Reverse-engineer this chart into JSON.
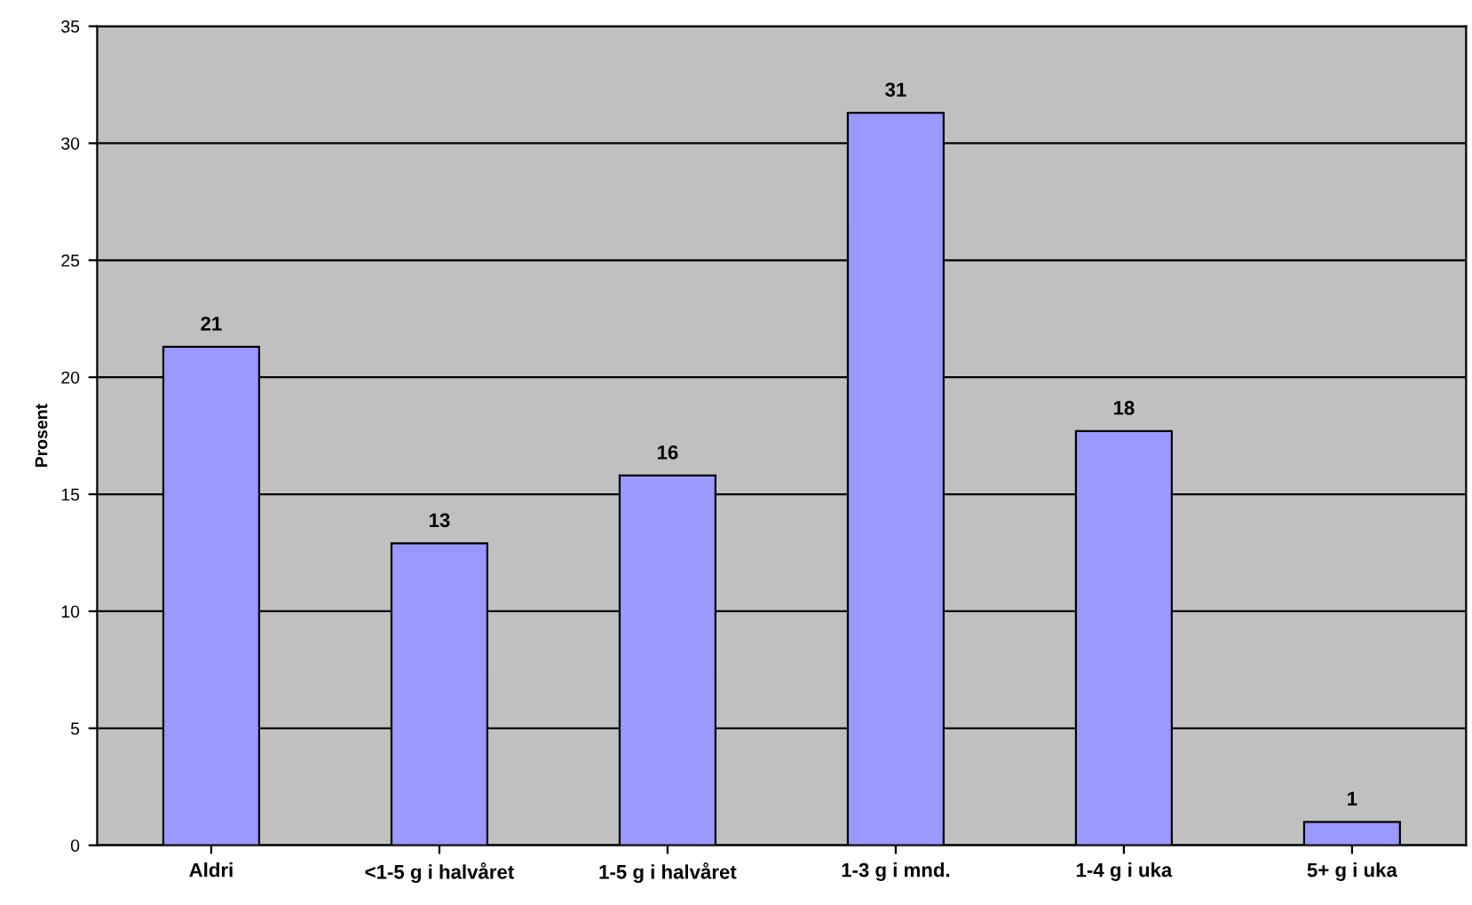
{
  "chart_data": {
    "type": "bar",
    "ylabel": "Prosent",
    "categories": [
      "Aldri",
      "<1-5 g i halvåret",
      "1-5 g i halvåret",
      "1-3 g i mnd.",
      "1-4 g i uka",
      "5+ g i uka"
    ],
    "values": [
      21.3,
      12.9,
      15.8,
      31.3,
      17.7,
      1.0
    ],
    "value_labels": [
      "21",
      "13",
      "16",
      "31",
      "18",
      "1"
    ],
    "color": "#9999ff",
    "ylim": [
      0,
      35
    ],
    "yticks": [
      0,
      5,
      10,
      15,
      20,
      25,
      30,
      35
    ],
    "grid": "y",
    "legend": false
  }
}
